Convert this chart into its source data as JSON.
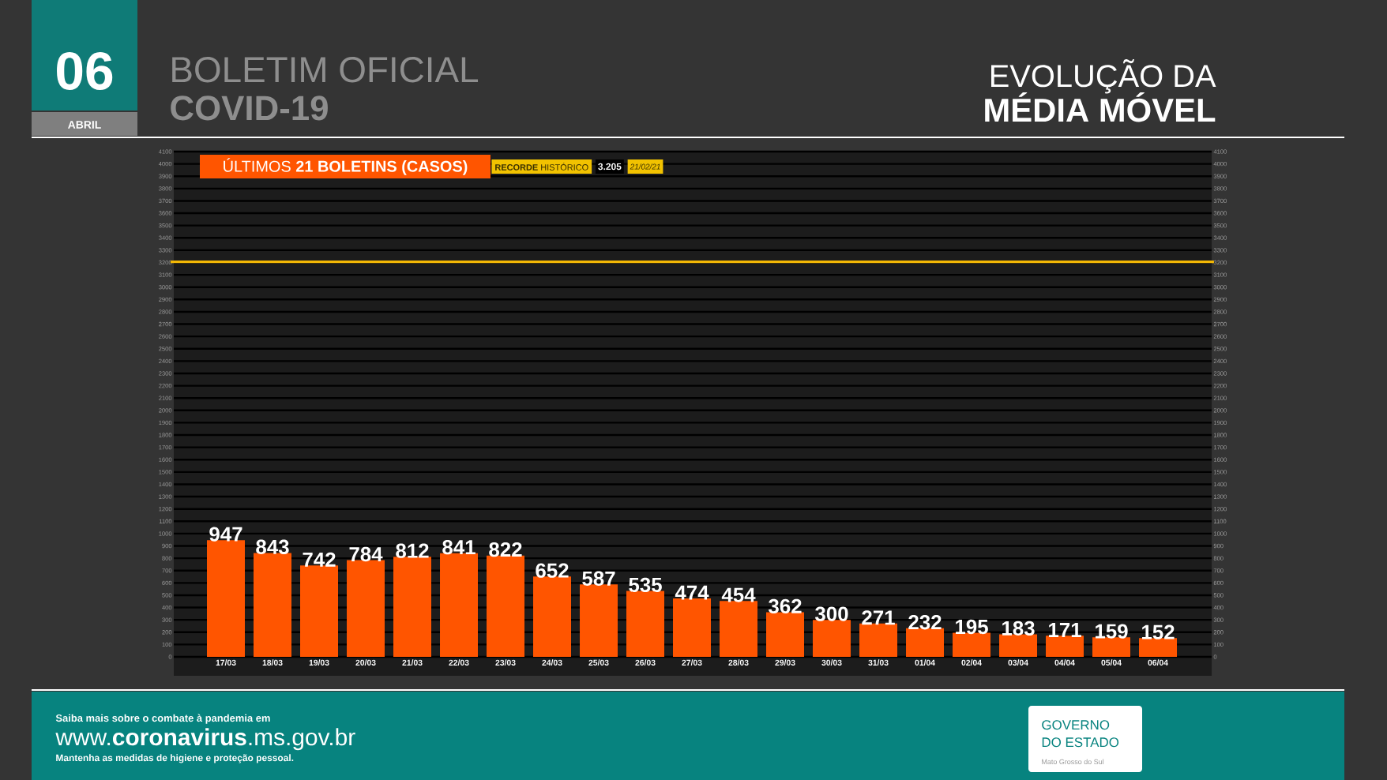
{
  "chart_data": {
    "type": "bar",
    "title": "ÚLTIMOS **21 BOLETINS (CASOS)**",
    "categories": [
      "17/03",
      "18/03",
      "19/03",
      "20/03",
      "21/03",
      "22/03",
      "23/03",
      "24/03",
      "25/03",
      "26/03",
      "27/03",
      "28/03",
      "29/03",
      "30/03",
      "31/03",
      "01/04",
      "02/04",
      "03/04",
      "04/04",
      "05/04",
      "06/04"
    ],
    "values": [
      947,
      843,
      742,
      784,
      812,
      841,
      822,
      652,
      587,
      535,
      474,
      454,
      362,
      300,
      271,
      232,
      195,
      183,
      171,
      159,
      152
    ],
    "color": "#ff5500",
    "data_labels": true,
    "ylim": [
      0,
      4100
    ],
    "yticks": [
      0,
      100,
      200,
      300,
      400,
      500,
      600,
      700,
      800,
      900,
      1000,
      1100,
      1200,
      1300,
      1400,
      1500,
      1600,
      1700,
      1800,
      1900,
      2000,
      2100,
      2200,
      2300,
      2400,
      2500,
      2600,
      2700,
      2800,
      2900,
      3000,
      3100,
      3200,
      3300,
      3400,
      3500,
      3600,
      3700,
      3800,
      3900,
      4000,
      4100
    ],
    "y2lim": [
      0,
      4100
    ],
    "y2ticks": [
      0,
      100,
      200,
      300,
      400,
      500,
      600,
      700,
      800,
      900,
      1000,
      1100,
      1200,
      1300,
      1400,
      1500,
      1600,
      1700,
      1800,
      1900,
      2000,
      2100,
      2200,
      2300,
      2400,
      2500,
      2600,
      2700,
      2800,
      2900,
      3000,
      3100,
      3200,
      3300,
      3400,
      3500,
      3600,
      3700,
      3800,
      3900,
      4000,
      4100
    ],
    "grid": "y",
    "ref_lines": [
      {
        "axis": "y",
        "value": 3205,
        "color": "#f2b705"
      }
    ],
    "annotations": [
      "06",
      "ABRIL",
      "BOLETIM OFICIAL",
      "COVID-19",
      "EVOLUÇÃO DA",
      "MÉDIA MÓVEL",
      "**RECORDE** HISTÓRICO",
      "3.205",
      "21/02/21",
      "Saiba mais sobre o combate à pandemia em",
      "www.**coronavirus**.ms.gov.br",
      "Mantenha as medidas de higiene e proteção pessoal.",
      "GOVERNO",
      "DO ESTADO",
      "Mato Grosso do Sul"
    ]
  }
}
